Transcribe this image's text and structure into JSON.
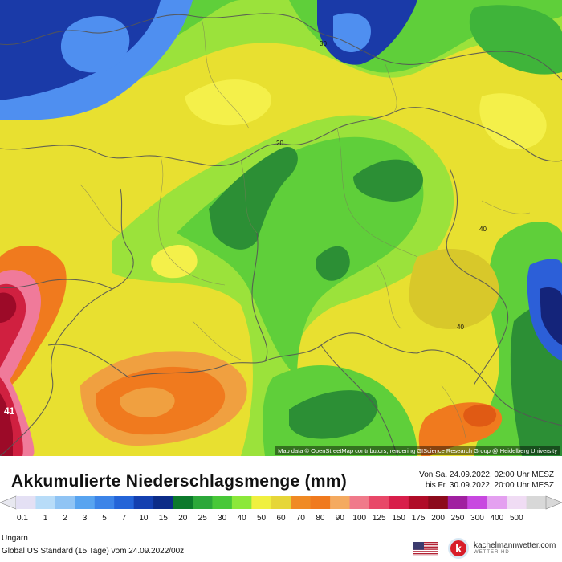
{
  "map": {
    "attribution": "Map data © OpenStreetMap contributors, rendering GIScience Research Group @ Heidelberg University",
    "contour_labels": [
      "30",
      "20",
      "40",
      "40",
      "41"
    ],
    "colors": {
      "yellow": "#e8e030",
      "light_yellow": "#f4f04a",
      "light_green": "#9be23b",
      "green": "#5fcf3a",
      "mid_green": "#3fb43a",
      "dark_green": "#2c8f35",
      "light_blue": "#4f8ff0",
      "mid_blue": "#2c5fd8",
      "dark_blue": "#1a3aa8",
      "navy": "#14247a",
      "light_orange": "#f0a040",
      "orange": "#f07a1e",
      "dark_orange": "#e05a14",
      "pink": "#f07a9a",
      "red": "#d02040",
      "dark_red": "#9c0a28"
    }
  },
  "legend": {
    "title": "Akkumulierte Niederschlagsmenge (mm)",
    "period_from": "Von Sa. 24.09.2022, 02:00 Uhr MESZ",
    "period_to": "bis Fr. 30.09.2022, 20:00 Uhr MESZ",
    "scale_values": [
      "0.1",
      "1",
      "2",
      "3",
      "5",
      "7",
      "10",
      "15",
      "20",
      "25",
      "30",
      "40",
      "50",
      "60",
      "70",
      "80",
      "90",
      "100",
      "125",
      "150",
      "175",
      "200",
      "250",
      "300",
      "400",
      "500"
    ],
    "scale_colors": [
      "#e4e0f4",
      "#b8dcf8",
      "#90c4f4",
      "#58a4f0",
      "#3c84e8",
      "#2464d8",
      "#1440b0",
      "#0c2c88",
      "#0c7a2c",
      "#2ca83a",
      "#48c838",
      "#8ce83a",
      "#f0f040",
      "#e6d638",
      "#f08a24",
      "#f07a1e",
      "#f4aa60",
      "#f07a8a",
      "#e84868",
      "#d81e4a",
      "#b00c28",
      "#8c0a1c",
      "#a020a0",
      "#c848e0",
      "#e4a0f0",
      "#f0dcf4",
      "#d8d8d8"
    ],
    "region": "Ungarn",
    "model": "Global US Standard (15 Tage) vom 24.09.2022/00z",
    "brand": "kachelmannwetter.com",
    "brand_sub": "WETTER HD"
  }
}
